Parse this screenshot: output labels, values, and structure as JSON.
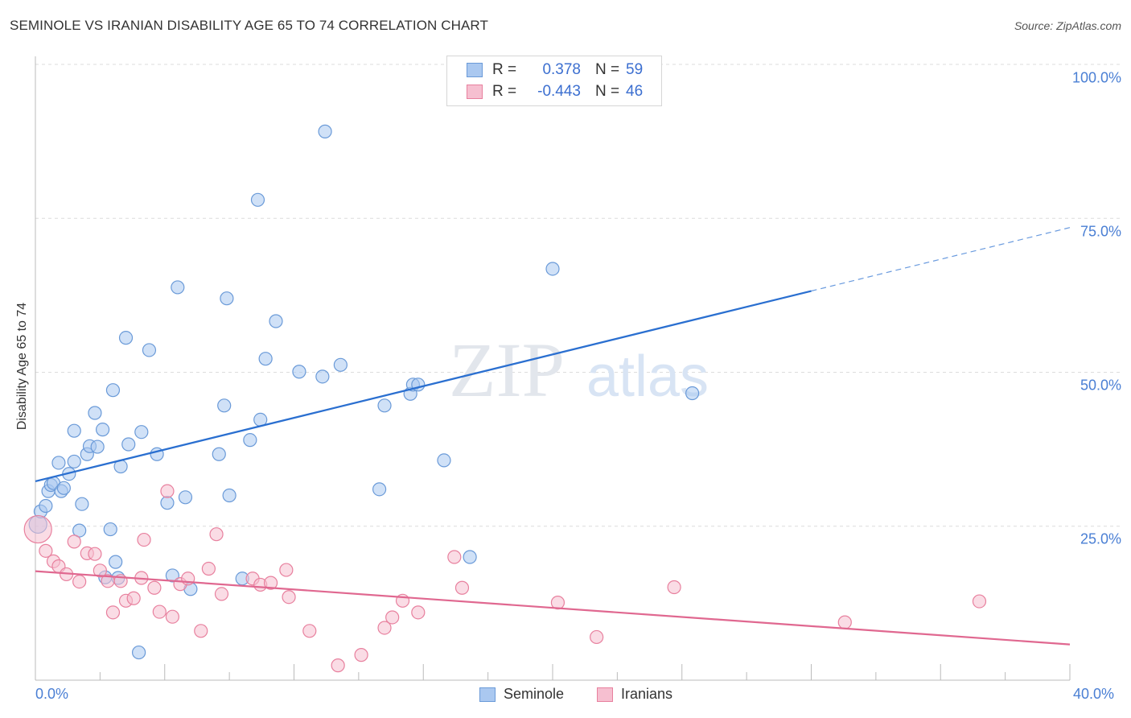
{
  "title": "SEMINOLE VS IRANIAN DISABILITY AGE 65 TO 74 CORRELATION CHART",
  "source": "Source: ZipAtlas.com",
  "watermark": {
    "zip": "ZIP",
    "atlas": "atlas"
  },
  "legend": {
    "series1": {
      "r_label": "R =",
      "r_value": "0.378",
      "n_label": "N =",
      "n_value": "59"
    },
    "series2": {
      "r_label": "R =",
      "r_value": "-0.443",
      "n_label": "N =",
      "n_value": "46"
    }
  },
  "colors": {
    "seminole_fill": "#aac8f0",
    "seminole_stroke": "#6a9ad8",
    "seminole_line": "#2a6fd0",
    "iranian_fill": "#f6bfd0",
    "iranian_stroke": "#e8809e",
    "iranian_line": "#e06890",
    "tick_text": "#4a7fd4",
    "grid": "#dcdcdc"
  },
  "chart_data": {
    "type": "scatter",
    "title": "SEMINOLE VS IRANIAN DISABILITY AGE 65 TO 74 CORRELATION CHART",
    "xlabel": "",
    "ylabel": "Disability Age 65 to 74",
    "xlim": [
      0,
      40
    ],
    "ylim": [
      0,
      102
    ],
    "x_tick_labels": [
      "0.0%",
      "40.0%"
    ],
    "y_ticks": [
      25,
      50,
      75,
      100
    ],
    "y_tick_labels": [
      "25.0%",
      "50.0%",
      "75.0%",
      "100.0%"
    ],
    "series": [
      {
        "name": "Seminole",
        "r": 0.378,
        "n": 59,
        "trend": {
          "x0": 0,
          "y0": 32.3,
          "x1": 30,
          "y1": 63.2,
          "dash_to_x": 40,
          "dash_to_y": 73.5
        },
        "points": [
          [
            0.1,
            25.3
          ],
          [
            0.2,
            27.4
          ],
          [
            0.4,
            28.3
          ],
          [
            0.5,
            30.7
          ],
          [
            0.6,
            31.7
          ],
          [
            0.7,
            32.0
          ],
          [
            0.9,
            35.3
          ],
          [
            1.0,
            30.7
          ],
          [
            1.1,
            31.2
          ],
          [
            1.3,
            33.5
          ],
          [
            1.5,
            35.5
          ],
          [
            1.8,
            28.6
          ],
          [
            1.7,
            24.3
          ],
          [
            1.5,
            40.5
          ],
          [
            2.0,
            36.7
          ],
          [
            2.1,
            38.0
          ],
          [
            2.3,
            43.4
          ],
          [
            2.4,
            37.9
          ],
          [
            2.6,
            40.7
          ],
          [
            2.9,
            24.5
          ],
          [
            3.0,
            47.1
          ],
          [
            3.1,
            19.2
          ],
          [
            3.3,
            34.7
          ],
          [
            3.5,
            55.6
          ],
          [
            3.6,
            38.3
          ],
          [
            4.0,
            4.5
          ],
          [
            4.1,
            40.3
          ],
          [
            4.4,
            53.6
          ],
          [
            4.7,
            36.7
          ],
          [
            5.1,
            28.8
          ],
          [
            5.3,
            17.0
          ],
          [
            5.5,
            63.8
          ],
          [
            5.8,
            29.7
          ],
          [
            6.0,
            14.8
          ],
          [
            7.1,
            36.7
          ],
          [
            7.3,
            44.6
          ],
          [
            7.4,
            62.0
          ],
          [
            7.5,
            30.0
          ],
          [
            8.0,
            16.5
          ],
          [
            8.3,
            39.0
          ],
          [
            8.6,
            78.0
          ],
          [
            8.7,
            42.3
          ],
          [
            8.9,
            52.2
          ],
          [
            9.3,
            58.3
          ],
          [
            10.2,
            50.1
          ],
          [
            11.2,
            89.1
          ],
          [
            11.1,
            49.3
          ],
          [
            11.8,
            51.2
          ],
          [
            13.3,
            31.0
          ],
          [
            13.5,
            44.6
          ],
          [
            14.5,
            46.5
          ],
          [
            14.6,
            48.0
          ],
          [
            14.8,
            48.0
          ],
          [
            15.8,
            35.7
          ],
          [
            16.8,
            20.0
          ],
          [
            20.0,
            66.8
          ],
          [
            25.4,
            46.6
          ],
          [
            3.2,
            16.6
          ],
          [
            2.7,
            16.7
          ]
        ]
      },
      {
        "name": "Iranians",
        "r": -0.443,
        "n": 46,
        "trend": {
          "x0": 0,
          "y0": 17.7,
          "x1": 40,
          "y1": 5.8
        },
        "points": [
          [
            0.1,
            24.5
          ],
          [
            0.4,
            21.0
          ],
          [
            0.7,
            19.3
          ],
          [
            0.9,
            18.5
          ],
          [
            1.2,
            17.2
          ],
          [
            1.5,
            22.5
          ],
          [
            1.7,
            16.0
          ],
          [
            2.0,
            20.6
          ],
          [
            2.3,
            20.5
          ],
          [
            2.5,
            17.8
          ],
          [
            2.8,
            16.1
          ],
          [
            3.0,
            11.0
          ],
          [
            3.3,
            16.1
          ],
          [
            3.5,
            12.9
          ],
          [
            3.8,
            13.3
          ],
          [
            4.1,
            16.6
          ],
          [
            4.2,
            22.8
          ],
          [
            4.6,
            15.0
          ],
          [
            4.8,
            11.1
          ],
          [
            5.1,
            30.7
          ],
          [
            5.3,
            10.3
          ],
          [
            5.6,
            15.6
          ],
          [
            5.9,
            16.5
          ],
          [
            6.4,
            8.0
          ],
          [
            6.7,
            18.1
          ],
          [
            7.0,
            23.7
          ],
          [
            7.2,
            14.0
          ],
          [
            8.4,
            16.5
          ],
          [
            8.7,
            15.5
          ],
          [
            9.1,
            15.8
          ],
          [
            9.7,
            17.9
          ],
          [
            9.8,
            13.5
          ],
          [
            10.6,
            8.0
          ],
          [
            11.7,
            2.4
          ],
          [
            12.6,
            4.1
          ],
          [
            13.5,
            8.5
          ],
          [
            13.8,
            10.2
          ],
          [
            14.2,
            12.9
          ],
          [
            14.8,
            11.0
          ],
          [
            16.2,
            20.0
          ],
          [
            16.5,
            15.0
          ],
          [
            20.2,
            12.6
          ],
          [
            21.7,
            7.0
          ],
          [
            24.7,
            15.1
          ],
          [
            31.3,
            9.4
          ],
          [
            36.5,
            12.8
          ]
        ]
      }
    ]
  },
  "axis": {
    "ylabel": "Disability Age 65 to 74",
    "y_tick_100": "100.0%",
    "y_tick_75": "75.0%",
    "y_tick_50": "50.0%",
    "y_tick_25": "25.0%",
    "x_tick_min": "0.0%",
    "x_tick_max": "40.0%"
  },
  "bottom_legend": {
    "seminole": "Seminole",
    "iranians": "Iranians"
  }
}
